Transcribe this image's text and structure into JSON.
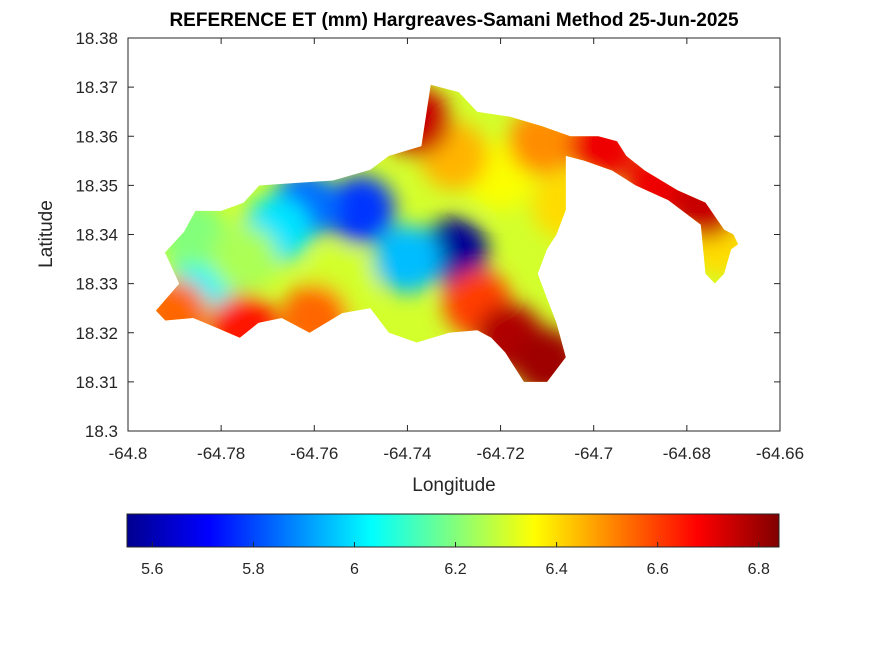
{
  "chart_data": {
    "type": "heatmap",
    "title": "REFERENCE ET (mm) Hargreaves-Samani Method  25-Jun-2025",
    "xlabel": "Longitude",
    "ylabel": "Latitude",
    "xlim": [
      -64.8,
      -64.66
    ],
    "ylim": [
      18.3,
      18.38
    ],
    "xticks": [
      -64.8,
      -64.78,
      -64.76,
      -64.74,
      -64.72,
      -64.7,
      -64.68,
      -64.66
    ],
    "xtick_labels": [
      "-64.8",
      "-64.78",
      "-64.76",
      "-64.74",
      "-64.72",
      "-64.7",
      "-64.68",
      "-64.66"
    ],
    "yticks": [
      18.3,
      18.31,
      18.32,
      18.33,
      18.34,
      18.35,
      18.36,
      18.37,
      18.38
    ],
    "ytick_labels": [
      "18.3",
      "18.31",
      "18.32",
      "18.33",
      "18.34",
      "18.35",
      "18.36",
      "18.37",
      "18.38"
    ],
    "grid": false,
    "colormap": "jet",
    "colorbar": {
      "orientation": "horizontal",
      "placement": "bottom",
      "clim": [
        5.55,
        6.84
      ],
      "ticks": [
        5.6,
        5.8,
        6.0,
        6.2,
        6.4,
        6.6,
        6.8
      ],
      "tick_labels": [
        "5.6",
        "5.8",
        "6",
        "6.2",
        "6.4",
        "6.6",
        "6.8"
      ]
    },
    "region_outline": [
      [
        -64.7922,
        18.3362
      ],
      [
        -64.788,
        18.3405
      ],
      [
        -64.7855,
        18.3448
      ],
      [
        -64.78,
        18.3448
      ],
      [
        -64.7752,
        18.3465
      ],
      [
        -64.7718,
        18.35
      ],
      [
        -64.756,
        18.351
      ],
      [
        -64.748,
        18.3532
      ],
      [
        -64.744,
        18.356
      ],
      [
        -64.737,
        18.358
      ],
      [
        -64.735,
        18.3705
      ],
      [
        -64.729,
        18.369
      ],
      [
        -64.725,
        18.365
      ],
      [
        -64.718,
        18.364
      ],
      [
        -64.711,
        18.362
      ],
      [
        -64.705,
        18.36
      ],
      [
        -64.699,
        18.36
      ],
      [
        -64.695,
        18.359
      ],
      [
        -64.693,
        18.356
      ],
      [
        -64.689,
        18.353
      ],
      [
        -64.682,
        18.349
      ],
      [
        -64.676,
        18.3465
      ],
      [
        -64.672,
        18.341
      ],
      [
        -64.67,
        18.34
      ],
      [
        -64.669,
        18.338
      ],
      [
        -64.6705,
        18.337
      ],
      [
        -64.672,
        18.332
      ],
      [
        -64.674,
        18.33
      ],
      [
        -64.676,
        18.332
      ],
      [
        -64.677,
        18.342
      ],
      [
        -64.684,
        18.347
      ],
      [
        -64.691,
        18.35
      ],
      [
        -64.696,
        18.353
      ],
      [
        -64.702,
        18.355
      ],
      [
        -64.706,
        18.356
      ],
      [
        -64.706,
        18.345
      ],
      [
        -64.708,
        18.34
      ],
      [
        -64.71,
        18.337
      ],
      [
        -64.712,
        18.332
      ],
      [
        -64.71,
        18.327
      ],
      [
        -64.708,
        18.322
      ],
      [
        -64.706,
        18.315
      ],
      [
        -64.71,
        18.31
      ],
      [
        -64.715,
        18.31
      ],
      [
        -64.719,
        18.316
      ],
      [
        -64.722,
        18.319
      ],
      [
        -64.725,
        18.3205
      ],
      [
        -64.731,
        18.32
      ],
      [
        -64.738,
        18.318
      ],
      [
        -64.744,
        18.32
      ],
      [
        -64.748,
        18.325
      ],
      [
        -64.754,
        18.324
      ],
      [
        -64.761,
        18.32
      ],
      [
        -64.767,
        18.323
      ],
      [
        -64.772,
        18.322
      ],
      [
        -64.776,
        18.319
      ],
      [
        -64.781,
        18.321
      ],
      [
        -64.786,
        18.323
      ],
      [
        -64.792,
        18.3225
      ],
      [
        -64.794,
        18.3245
      ],
      [
        -64.789,
        18.33
      ],
      [
        -64.792,
        18.3362
      ]
    ],
    "hotspots": [
      {
        "lon": -64.73,
        "lat": 18.3365,
        "value": 5.58
      },
      {
        "lon": -64.75,
        "lat": 18.345,
        "value": 5.78
      },
      {
        "lon": -64.762,
        "lat": 18.346,
        "value": 5.85
      },
      {
        "lon": -64.74,
        "lat": 18.335,
        "value": 5.95
      },
      {
        "lon": -64.768,
        "lat": 18.341,
        "value": 6.0
      },
      {
        "lon": -64.783,
        "lat": 18.332,
        "value": 6.02
      },
      {
        "lon": -64.786,
        "lat": 18.34,
        "value": 6.2
      },
      {
        "lon": -64.775,
        "lat": 18.335,
        "value": 6.25
      },
      {
        "lon": -64.754,
        "lat": 18.33,
        "value": 6.3
      },
      {
        "lon": -64.72,
        "lat": 18.352,
        "value": 6.35
      },
      {
        "lon": -64.73,
        "lat": 18.356,
        "value": 6.45
      },
      {
        "lon": -64.711,
        "lat": 18.359,
        "value": 6.5
      },
      {
        "lon": -64.673,
        "lat": 18.3385,
        "value": 6.4
      },
      {
        "lon": -64.706,
        "lat": 18.346,
        "value": 6.4
      },
      {
        "lon": -64.738,
        "lat": 18.363,
        "value": 6.75
      },
      {
        "lon": -64.725,
        "lat": 18.326,
        "value": 6.6
      },
      {
        "lon": -64.718,
        "lat": 18.319,
        "value": 6.78
      },
      {
        "lon": -64.71,
        "lat": 18.314,
        "value": 6.8
      },
      {
        "lon": -64.76,
        "lat": 18.323,
        "value": 6.55
      },
      {
        "lon": -64.775,
        "lat": 18.321,
        "value": 6.65
      },
      {
        "lon": -64.79,
        "lat": 18.324,
        "value": 6.55
      },
      {
        "lon": -64.698,
        "lat": 18.358,
        "value": 6.7
      },
      {
        "lon": -64.686,
        "lat": 18.35,
        "value": 6.7
      },
      {
        "lon": -64.676,
        "lat": 18.346,
        "value": 6.75
      }
    ]
  }
}
